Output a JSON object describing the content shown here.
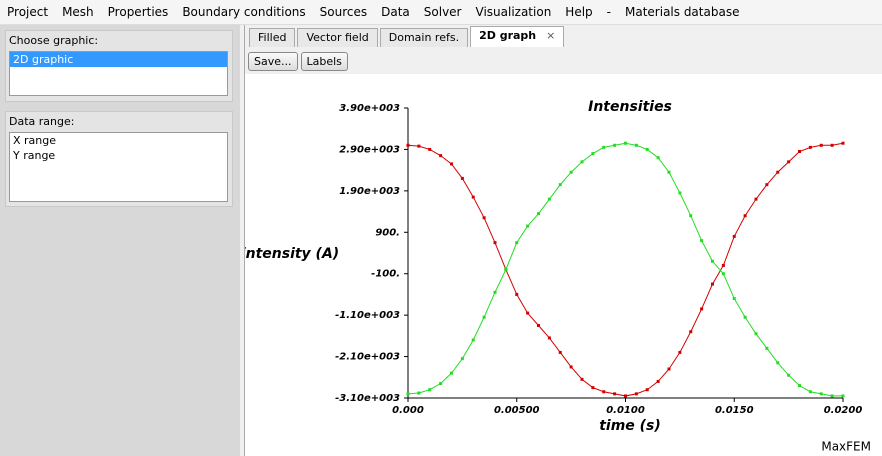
{
  "menu": [
    "Project",
    "Mesh",
    "Properties",
    "Boundary conditions",
    "Sources",
    "Data",
    "Solver",
    "Visualization",
    "Help",
    "-",
    "Materials database"
  ],
  "sidebar": {
    "choose_graphic": {
      "label": "Choose graphic:",
      "items": [
        "2D graphic"
      ]
    },
    "data_range": {
      "label": "Data range:",
      "items": [
        "X range",
        "Y range"
      ]
    }
  },
  "tabs": [
    "Filled",
    "Vector field",
    "Domain refs.",
    "2D graph"
  ],
  "toolbar": [
    "Save...",
    "Labels"
  ],
  "chart_data": {
    "type": "line",
    "title": "Intensities",
    "x_label": "time (s)",
    "y_label": "intensity (A)",
    "x": [
      0,
      0.0005,
      0.001,
      0.0015,
      0.002,
      0.0025,
      0.003,
      0.0035,
      0.004,
      0.0045,
      0.005,
      0.0055,
      0.006,
      0.0065,
      0.007,
      0.0075,
      0.008,
      0.0085,
      0.009,
      0.0095,
      0.01,
      0.0105,
      0.011,
      0.0115,
      0.012,
      0.0125,
      0.013,
      0.0135,
      0.014,
      0.0145,
      0.015,
      0.0155,
      0.016,
      0.0165,
      0.017,
      0.0175,
      0.018,
      0.0185,
      0.019,
      0.0195,
      0.02
    ],
    "series": [
      {
        "color": "#d40000",
        "values": [
          3000,
          2980,
          2900,
          2750,
          2550,
          2200,
          1750,
          1250,
          650,
          0,
          -600,
          -1050,
          -1350,
          -1650,
          -2000,
          -2350,
          -2650,
          -2850,
          -2950,
          -3000,
          -3050,
          -3000,
          -2900,
          -2700,
          -2400,
          -2000,
          -1500,
          -950,
          -350,
          100,
          800,
          1300,
          1700,
          2050,
          2350,
          2600,
          2850,
          2950,
          3000,
          3000,
          3050
        ]
      },
      {
        "color": "#22dd22",
        "values": [
          -3000,
          -2980,
          -2900,
          -2750,
          -2500,
          -2150,
          -1700,
          -1150,
          -550,
          0,
          650,
          1050,
          1350,
          1700,
          2050,
          2350,
          2600,
          2800,
          2950,
          3000,
          3050,
          3000,
          2900,
          2700,
          2350,
          1850,
          1300,
          700,
          200,
          -100,
          -700,
          -1150,
          -1550,
          -1900,
          -2250,
          -2550,
          -2800,
          -2950,
          -3000,
          -3050,
          -3050
        ]
      }
    ],
    "xlim": [
      0,
      0.02
    ],
    "ylim": [
      -3100,
      3900
    ],
    "xticks": [
      {
        "value": 0,
        "label": "0.000"
      },
      {
        "value": 0.005,
        "label": "0.00500"
      },
      {
        "value": 0.01,
        "label": "0.0100"
      },
      {
        "value": 0.015,
        "label": "0.0150"
      },
      {
        "value": 0.02,
        "label": "0.0200"
      }
    ],
    "yticks": [
      {
        "value": -3100,
        "label": "-3.10e+003"
      },
      {
        "value": -2100,
        "label": "-2.10e+003"
      },
      {
        "value": -1100,
        "label": "-1.10e+003"
      },
      {
        "value": -100,
        "label": "-100."
      },
      {
        "value": 900,
        "label": "900."
      },
      {
        "value": 1900,
        "label": "1.90e+003"
      },
      {
        "value": 2900,
        "label": "2.90e+003"
      },
      {
        "value": 3900,
        "label": "3.90e+003"
      }
    ]
  },
  "footer": "MaxFEM"
}
